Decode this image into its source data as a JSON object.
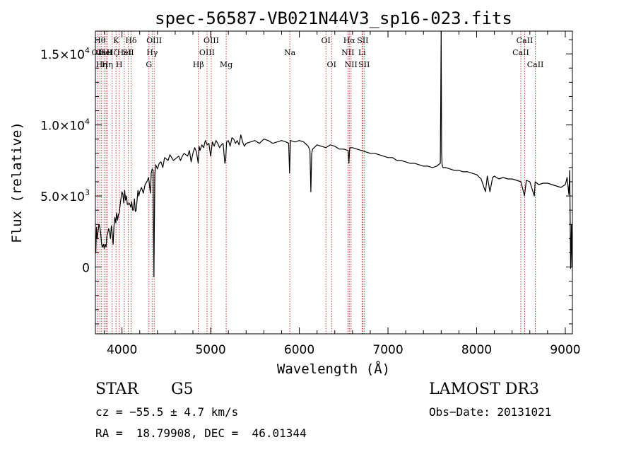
{
  "chart_data": {
    "type": "line",
    "title": "spec-56587-VB021N44V3_sp16-023.fits",
    "xlabel": "Wavelength (Å)",
    "ylabel": "Flux (relative)",
    "xlim": [
      3700,
      9080
    ],
    "ylim": [
      -4700,
      16600
    ],
    "x_ticks": [
      {
        "value": 4000,
        "label": "4000"
      },
      {
        "value": 5000,
        "label": "5000"
      },
      {
        "value": 6000,
        "label": "6000"
      },
      {
        "value": 7000,
        "label": "7000"
      },
      {
        "value": 8000,
        "label": "8000"
      },
      {
        "value": 9000,
        "label": "9000"
      }
    ],
    "y_ticks": [
      {
        "value": 0,
        "mantissa": "0",
        "exponent": ""
      },
      {
        "value": 5000,
        "mantissa": "5.0×10",
        "exponent": "3"
      },
      {
        "value": 10000,
        "mantissa": "1.0×10",
        "exponent": "4"
      },
      {
        "value": 15000,
        "mantissa": "1.5×10",
        "exponent": "4"
      }
    ],
    "grid": false,
    "series": [
      {
        "color": "#000000",
        "x": [
          3705,
          3712,
          3720,
          3730,
          3740,
          3750,
          3760,
          3770,
          3780,
          3790,
          3800,
          3810,
          3820,
          3830,
          3840,
          3850,
          3860,
          3870,
          3880,
          3890,
          3900,
          3910,
          3920,
          3930,
          3940,
          3950,
          3960,
          3970,
          3980,
          3990,
          4000,
          4010,
          4020,
          4030,
          4040,
          4050,
          4060,
          4070,
          4080,
          4090,
          4100,
          4110,
          4120,
          4130,
          4140,
          4150,
          4160,
          4170,
          4180,
          4190,
          4200,
          4220,
          4240,
          4260,
          4280,
          4300,
          4320,
          4330,
          4340,
          4350,
          4360,
          4370,
          4380,
          4400,
          4420,
          4440,
          4460,
          4480,
          4500,
          4520,
          4540,
          4560,
          4580,
          4600,
          4620,
          4640,
          4660,
          4680,
          4700,
          4720,
          4740,
          4760,
          4780,
          4800,
          4820,
          4840,
          4860,
          4870,
          4880,
          4900,
          4920,
          4940,
          4960,
          4980,
          5000,
          5020,
          5040,
          5060,
          5080,
          5100,
          5120,
          5140,
          5160,
          5170,
          5180,
          5200,
          5220,
          5240,
          5260,
          5280,
          5300,
          5320,
          5340,
          5360,
          5380,
          5400,
          5450,
          5500,
          5550,
          5600,
          5650,
          5700,
          5750,
          5800,
          5850,
          5880,
          5890,
          5900,
          5950,
          6000,
          6050,
          6100,
          6120,
          6130,
          6140,
          6150,
          6200,
          6250,
          6300,
          6350,
          6400,
          6450,
          6500,
          6550,
          6560,
          6565,
          6570,
          6600,
          6650,
          6700,
          6750,
          6800,
          6850,
          6900,
          6950,
          7000,
          7050,
          7100,
          7150,
          7200,
          7250,
          7300,
          7350,
          7400,
          7450,
          7500,
          7550,
          7590,
          7600,
          7605,
          7610,
          7620,
          7650,
          7700,
          7750,
          7800,
          7850,
          7900,
          7950,
          8000,
          8050,
          8100,
          8120,
          8150,
          8180,
          8200,
          8250,
          8300,
          8350,
          8400,
          8450,
          8500,
          8540,
          8560,
          8600,
          8650,
          8660,
          8700,
          8750,
          8800,
          8850,
          8900,
          8950,
          9000,
          9020,
          9040,
          9050,
          9060,
          9070,
          9075
        ],
        "y": [
          1000,
          2800,
          2000,
          2500,
          3000,
          2800,
          2400,
          1600,
          1400,
          1600,
          1300,
          1600,
          1400,
          2200,
          2400,
          2700,
          2400,
          2000,
          2900,
          2400,
          1600,
          2900,
          3500,
          3100,
          3800,
          3300,
          3700,
          3800,
          4400,
          4900,
          5300,
          5100,
          4500,
          5400,
          4700,
          5000,
          4400,
          4400,
          4500,
          4400,
          4200,
          4600,
          4000,
          4000,
          4800,
          3900,
          4000,
          4700,
          5400,
          5000,
          5300,
          5600,
          5200,
          5800,
          6000,
          6300,
          5200,
          6600,
          6900,
          6800,
          -700,
          6500,
          7200,
          6900,
          7300,
          7400,
          7000,
          7700,
          7600,
          7500,
          7900,
          7700,
          7500,
          7600,
          7700,
          7800,
          7500,
          7800,
          8000,
          7900,
          7800,
          8200,
          7400,
          8000,
          8400,
          8100,
          7300,
          8500,
          8200,
          8600,
          8400,
          8900,
          8600,
          8700,
          7800,
          8800,
          8500,
          8900,
          8700,
          8400,
          8600,
          8700,
          7300,
          7600,
          8800,
          8900,
          8500,
          9100,
          9000,
          8700,
          8900,
          8600,
          9300,
          8800,
          8500,
          8700,
          8800,
          8900,
          8700,
          9000,
          8900,
          8700,
          8800,
          8900,
          8800,
          8700,
          6600,
          8900,
          8800,
          8900,
          8800,
          8500,
          8200,
          5300,
          8000,
          8300,
          8600,
          8500,
          8400,
          8600,
          8500,
          8300,
          8300,
          8200,
          7300,
          8100,
          8400,
          8400,
          8300,
          8200,
          8100,
          8000,
          8000,
          7900,
          7800,
          7700,
          7700,
          7500,
          7500,
          7400,
          7300,
          7300,
          7200,
          7100,
          7100,
          7000,
          7100,
          7300,
          16600,
          8000,
          7200,
          7000,
          7000,
          6900,
          6800,
          6800,
          6700,
          6700,
          6600,
          6500,
          6200,
          5300,
          6400,
          5300,
          6300,
          6400,
          6200,
          6300,
          6200,
          6200,
          6100,
          6000,
          5000,
          6100,
          6000,
          5000,
          6000,
          5800,
          5900,
          5900,
          5800,
          5700,
          5600,
          5800,
          6300,
          5100,
          6800,
          -100,
          3000,
          0
        ]
      }
    ],
    "lines": [
      {
        "x": 3727,
        "label": "OII",
        "row": 2
      },
      {
        "x": 3750,
        "label": "Hθ",
        "row": 1
      },
      {
        "x": 3770,
        "label": "Hη",
        "row": 3
      },
      {
        "x": 3798,
        "label": "CaII",
        "row": 2
      },
      {
        "x": 3820,
        "label": "HeI",
        "row": 2
      },
      {
        "x": 3835,
        "label": "Hη",
        "row": 3
      },
      {
        "x": 3889,
        "label": "Hζ",
        "row": 2
      },
      {
        "x": 3933,
        "label": "K",
        "row": 1
      },
      {
        "x": 3968,
        "label": "H",
        "row": 3
      },
      {
        "x": 4026,
        "label": "HeI",
        "row": 2
      },
      {
        "x": 4072,
        "label": "SII",
        "row": 2
      },
      {
        "x": 4102,
        "label": "Hδ",
        "row": 1
      },
      {
        "x": 4304,
        "label": "G",
        "row": 3
      },
      {
        "x": 4340,
        "label": "Hγ",
        "row": 2
      },
      {
        "x": 4363,
        "label": "OIII",
        "row": 1
      },
      {
        "x": 4861,
        "label": "Hβ",
        "row": 3
      },
      {
        "x": 4959,
        "label": "OIII",
        "row": 2
      },
      {
        "x": 5007,
        "label": "OIII",
        "row": 1
      },
      {
        "x": 5175,
        "label": "Mg",
        "row": 3
      },
      {
        "x": 5893,
        "label": "Na",
        "row": 2
      },
      {
        "x": 6300,
        "label": "OI",
        "row": 1
      },
      {
        "x": 6364,
        "label": "OI",
        "row": 3
      },
      {
        "x": 6548,
        "label": "NII",
        "row": 2
      },
      {
        "x": 6563,
        "label": "Hα",
        "row": 1
      },
      {
        "x": 6583,
        "label": "NII",
        "row": 3
      },
      {
        "x": 6707,
        "label": "Li",
        "row": 2
      },
      {
        "x": 6716,
        "label": "SII",
        "row": 1
      },
      {
        "x": 6731,
        "label": "SII",
        "row": 3
      },
      {
        "x": 8498,
        "label": "CaII",
        "row": 2
      },
      {
        "x": 8542,
        "label": "CaII",
        "row": 1
      },
      {
        "x": 8662,
        "label": "CaII",
        "row": 3
      }
    ]
  },
  "info": {
    "class": "STAR",
    "subclass": "G5",
    "survey": "LAMOST DR3",
    "cz": "cz = −55.5 ± 4.7 km/s",
    "obs_date": "Obs−Date: 20131021",
    "coords": "RA =  18.79908, DEC =  46.01344"
  }
}
